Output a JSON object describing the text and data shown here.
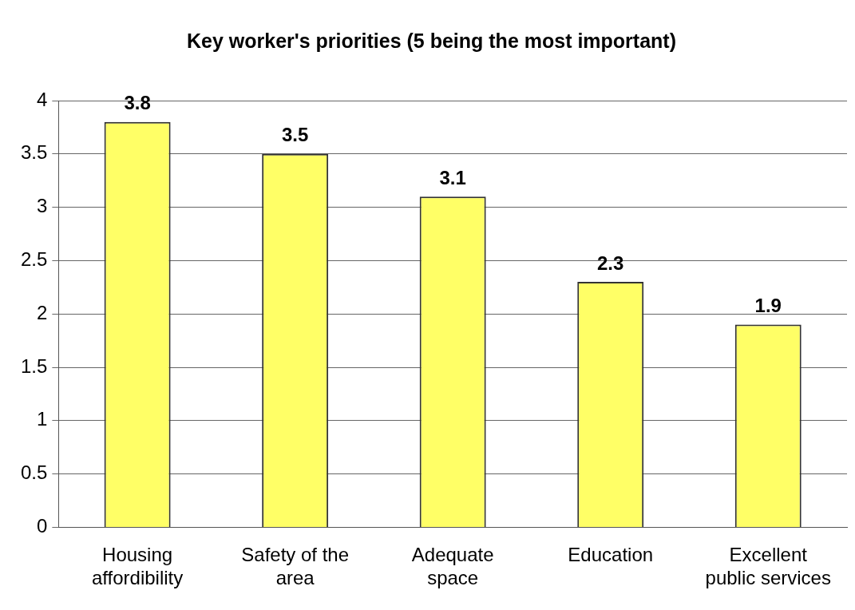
{
  "chart_data": {
    "type": "bar",
    "title": "Key worker's priorities (5 being the most important)",
    "categories": [
      "Housing affordibility",
      "Safety of the area",
      "Adequate space",
      "Education",
      "Excellent public services"
    ],
    "values": [
      3.8,
      3.5,
      3.1,
      2.3,
      1.9
    ],
    "color": "#ffff66",
    "ylim": [
      0,
      4
    ],
    "yticks": [
      0,
      0.5,
      1,
      1.5,
      2,
      2.5,
      3,
      3.5,
      4
    ],
    "grid": "y",
    "data_labels": true
  }
}
